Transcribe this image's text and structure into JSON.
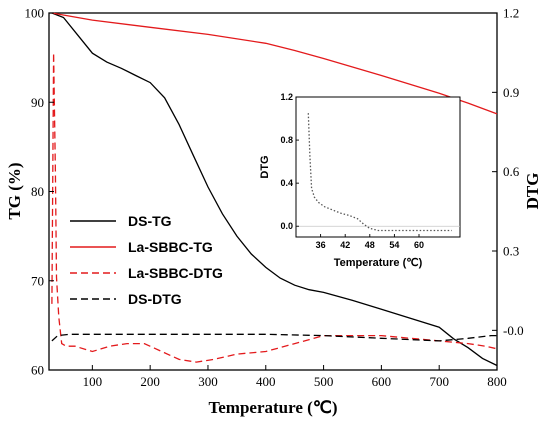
{
  "chart_data": {
    "type": "line",
    "xlabel": "Temperature (℃)",
    "ylabel_left": "TG (%)",
    "ylabel_right": "DTG",
    "xlim": [
      25,
      800
    ],
    "ylim_left": [
      60,
      100
    ],
    "ylim_right": [
      -0.15,
      1.2
    ],
    "x_ticks": [
      100,
      200,
      300,
      400,
      500,
      600,
      700,
      800
    ],
    "y_left_ticks": [
      60,
      70,
      80,
      90,
      100
    ],
    "y_right_ticks": [
      "-0.0",
      "0.3",
      "0.6",
      "0.9",
      "1.2"
    ],
    "y_right_tick_values": [
      0.0,
      0.3,
      0.6,
      0.9,
      1.2
    ],
    "legend_position": "center-left",
    "grid": false,
    "series": [
      {
        "name": "DS-TG",
        "axis": "left",
        "color": "#000000",
        "style": "solid",
        "x": [
          30,
          50,
          75,
          100,
          125,
          150,
          175,
          200,
          225,
          250,
          275,
          300,
          325,
          350,
          375,
          400,
          425,
          450,
          475,
          500,
          550,
          600,
          650,
          700,
          725,
          750,
          775,
          800
        ],
        "y": [
          100,
          99.5,
          97.5,
          95.5,
          94.5,
          93.8,
          93.0,
          92.2,
          90.5,
          87.5,
          84.0,
          80.5,
          77.5,
          75.0,
          73.0,
          71.5,
          70.3,
          69.5,
          69.0,
          68.7,
          67.8,
          66.8,
          65.8,
          64.8,
          63.5,
          62.5,
          61.3,
          60.5
        ]
      },
      {
        "name": "La-SBBC-TG",
        "axis": "left",
        "color": "#e31a1c",
        "style": "solid",
        "x": [
          30,
          100,
          200,
          300,
          400,
          450,
          500,
          600,
          700,
          750,
          800
        ],
        "y": [
          100,
          99.2,
          98.4,
          97.6,
          96.6,
          95.8,
          94.9,
          93.0,
          91.0,
          89.9,
          88.7
        ]
      },
      {
        "name": "La-SBBC-DTG",
        "axis": "right",
        "color": "#e31a1c",
        "style": "dashed",
        "x": [
          30,
          33,
          36,
          38,
          42,
          47,
          55,
          70,
          100,
          130,
          160,
          190,
          220,
          250,
          280,
          310,
          350,
          400,
          450,
          500,
          550,
          600,
          650,
          700,
          750,
          780,
          800
        ],
        "y": [
          0.1,
          1.05,
          0.6,
          0.2,
          0.05,
          -0.05,
          -0.06,
          -0.06,
          -0.08,
          -0.06,
          -0.05,
          -0.05,
          -0.08,
          -0.11,
          -0.12,
          -0.11,
          -0.09,
          -0.08,
          -0.05,
          -0.02,
          -0.02,
          -0.02,
          -0.03,
          -0.04,
          -0.05,
          -0.06,
          -0.07
        ]
      },
      {
        "name": "DS-DTG",
        "axis": "right",
        "color": "#000000",
        "style": "dashed",
        "x": [
          30,
          40,
          60,
          100,
          200,
          300,
          400,
          500,
          600,
          700,
          750,
          790,
          800
        ],
        "y": [
          -0.04,
          -0.02,
          -0.015,
          -0.015,
          -0.015,
          -0.015,
          -0.015,
          -0.02,
          -0.03,
          -0.04,
          -0.03,
          -0.02,
          -0.02
        ]
      }
    ],
    "inset": {
      "ylabel": "DTG",
      "xlabel": "Temperature (℃)",
      "xlim": [
        30,
        70
      ],
      "ylim": [
        -0.1,
        1.2
      ],
      "x_ticks": [
        36,
        42,
        48,
        54,
        60
      ],
      "y_ticks": [
        "0.0",
        "0.4",
        "0.8",
        "1.2"
      ],
      "y_tick_values": [
        0.0,
        0.4,
        0.8,
        1.2
      ],
      "series": [
        {
          "style": "dotted",
          "color": "#555555",
          "x": [
            33,
            33.4,
            33.8,
            34.5,
            35.5,
            37,
            39,
            41,
            43,
            45,
            46.5,
            48,
            50,
            55,
            60,
            65,
            68
          ],
          "y": [
            1.05,
            0.65,
            0.35,
            0.27,
            0.22,
            0.18,
            0.15,
            0.12,
            0.1,
            0.07,
            0.02,
            -0.02,
            -0.04,
            -0.04,
            -0.04,
            -0.04,
            -0.04
          ]
        }
      ]
    }
  }
}
